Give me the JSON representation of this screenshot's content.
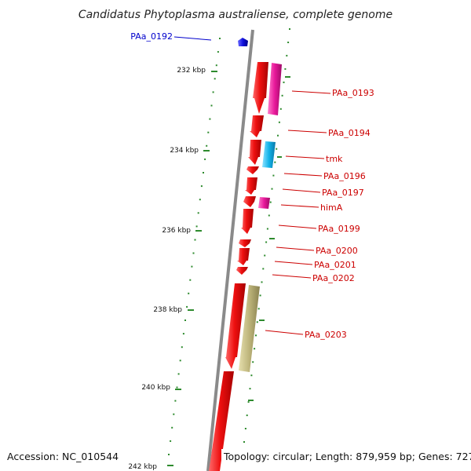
{
  "title": "Candidatus Phytoplasma australiense, complete genome",
  "accession_label": "Accession: NC_010544",
  "topology_label": "Topology: circular; Length: 879,959 bp; Genes: 727",
  "scale_labels": [
    "232 kbp",
    "234 kbp",
    "236 kbp",
    "238 kbp",
    "240 kbp",
    "242 kbp"
  ],
  "colors": {
    "backbone": "#8a8a8a",
    "cds": "#ee1111",
    "tick": "#2e8b2e",
    "label_red": "#cc0000",
    "label_blue": "#0000cc",
    "magenta": "#e8189a",
    "cyan": "#12b4ea",
    "khaki": "#bdb47a",
    "blue": "#1010dd"
  },
  "genes": [
    {
      "name": "PAa_0192",
      "color": "label_blue"
    },
    {
      "name": "PAa_0193",
      "color": "label_red"
    },
    {
      "name": "PAa_0194",
      "color": "label_red"
    },
    {
      "name": "tmk",
      "color": "label_red"
    },
    {
      "name": "PAa_0196",
      "color": "label_red"
    },
    {
      "name": "PAa_0197",
      "color": "label_red"
    },
    {
      "name": "himA",
      "color": "label_red"
    },
    {
      "name": "PAa_0199",
      "color": "label_red"
    },
    {
      "name": "PAa_0200",
      "color": "label_red"
    },
    {
      "name": "PAa_0201",
      "color": "label_red"
    },
    {
      "name": "PAa_0202",
      "color": "label_red"
    },
    {
      "name": "PAa_0203",
      "color": "label_red"
    }
  ]
}
